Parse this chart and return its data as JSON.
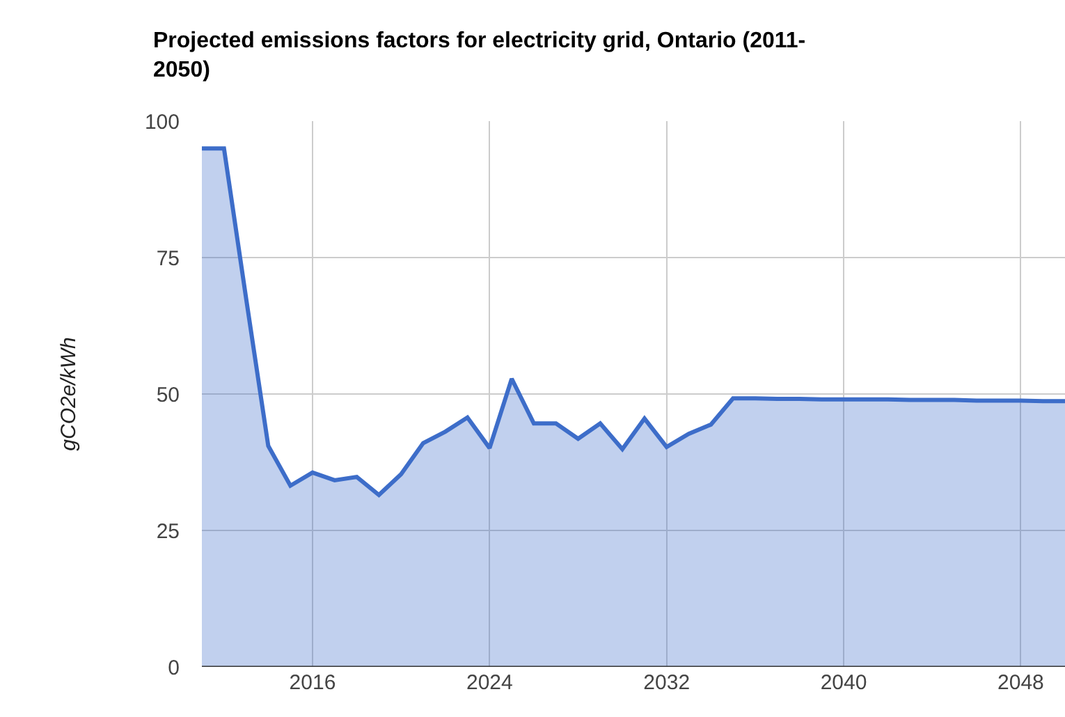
{
  "chart_data": {
    "type": "area",
    "title": "Projected emissions factors for electricity grid, Ontario (2011-\n2050)",
    "ylabel": "gCO2e/kWh",
    "x": [
      2011,
      2012,
      2013,
      2014,
      2015,
      2016,
      2017,
      2018,
      2019,
      2020,
      2021,
      2022,
      2023,
      2024,
      2025,
      2026,
      2027,
      2028,
      2029,
      2030,
      2031,
      2032,
      2033,
      2034,
      2035,
      2036,
      2037,
      2038,
      2039,
      2040,
      2041,
      2042,
      2043,
      2044,
      2045,
      2046,
      2047,
      2048,
      2049,
      2050
    ],
    "series": [
      {
        "color": "#3d6dc9",
        "values": [
          95,
          95,
          67.5,
          40.5,
          33.2,
          35.6,
          34.2,
          34.8,
          31.5,
          35.3,
          41,
          43.1,
          45.7,
          40.1,
          52.8,
          44.6,
          44.6,
          41.8,
          44.6,
          39.9,
          45.5,
          40.3,
          42.7,
          44.4,
          49.2,
          49.2,
          49.1,
          49.1,
          49,
          49,
          49,
          49,
          48.9,
          48.9,
          48.9,
          48.8,
          48.8,
          48.8,
          48.7,
          48.7
        ]
      }
    ],
    "xlim": [
      2011,
      2050
    ],
    "xticks": [
      2016,
      2024,
      2032,
      2040,
      2048
    ],
    "ylim": [
      0,
      100
    ],
    "yticks": [
      0,
      25,
      50,
      75,
      100
    ],
    "grid": true,
    "legend": false
  }
}
